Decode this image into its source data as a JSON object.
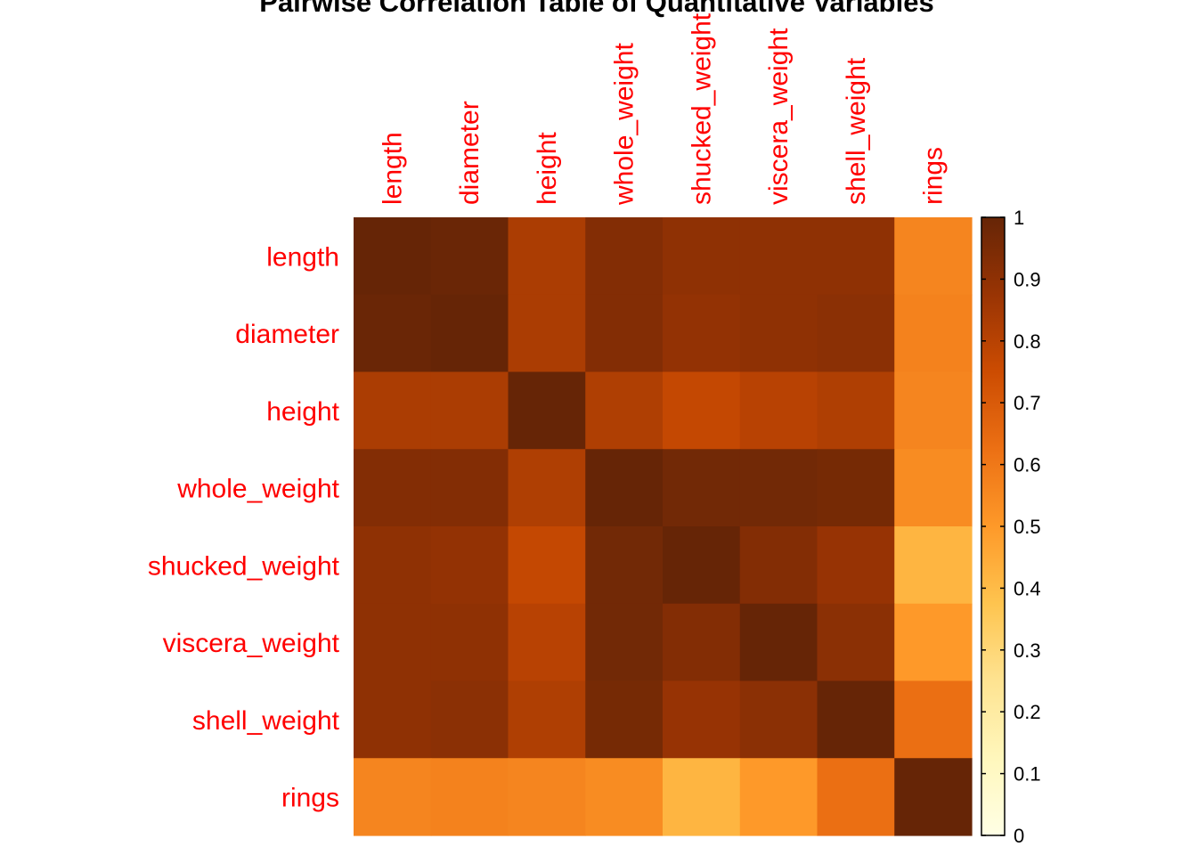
{
  "chart_data": {
    "type": "heatmap",
    "title": "Pairwise Correlation Table of Quantitative Variables",
    "row_labels": [
      "length",
      "diameter",
      "height",
      "whole_weight",
      "shucked_weight",
      "viscera_weight",
      "shell_weight",
      "rings"
    ],
    "col_labels": [
      "length",
      "diameter",
      "height",
      "whole_weight",
      "shucked_weight",
      "viscera_weight",
      "shell_weight",
      "rings"
    ],
    "values": [
      [
        1.0,
        0.99,
        0.83,
        0.93,
        0.9,
        0.9,
        0.9,
        0.56
      ],
      [
        0.99,
        1.0,
        0.83,
        0.93,
        0.89,
        0.9,
        0.91,
        0.57
      ],
      [
        0.83,
        0.83,
        1.0,
        0.82,
        0.77,
        0.8,
        0.82,
        0.56
      ],
      [
        0.93,
        0.93,
        0.82,
        1.0,
        0.97,
        0.97,
        0.96,
        0.54
      ],
      [
        0.9,
        0.89,
        0.77,
        0.97,
        1.0,
        0.93,
        0.88,
        0.42
      ],
      [
        0.9,
        0.9,
        0.8,
        0.97,
        0.93,
        1.0,
        0.91,
        0.5
      ],
      [
        0.9,
        0.91,
        0.82,
        0.96,
        0.88,
        0.91,
        1.0,
        0.63
      ],
      [
        0.56,
        0.57,
        0.56,
        0.54,
        0.42,
        0.5,
        0.63,
        1.0
      ]
    ],
    "label_color": "#ff0000",
    "colorbar": {
      "range": [
        0,
        1
      ],
      "ticks": [
        "0",
        "0.1",
        "0.2",
        "0.3",
        "0.4",
        "0.5",
        "0.6",
        "0.7",
        "0.8",
        "0.9",
        "1"
      ],
      "stops": [
        "#ffffe5",
        "#fff7bc",
        "#fee391",
        "#fec44f",
        "#fe9929",
        "#ec7014",
        "#cc4c02",
        "#993404",
        "#662506"
      ]
    },
    "legend_position": "right",
    "grid": false
  }
}
